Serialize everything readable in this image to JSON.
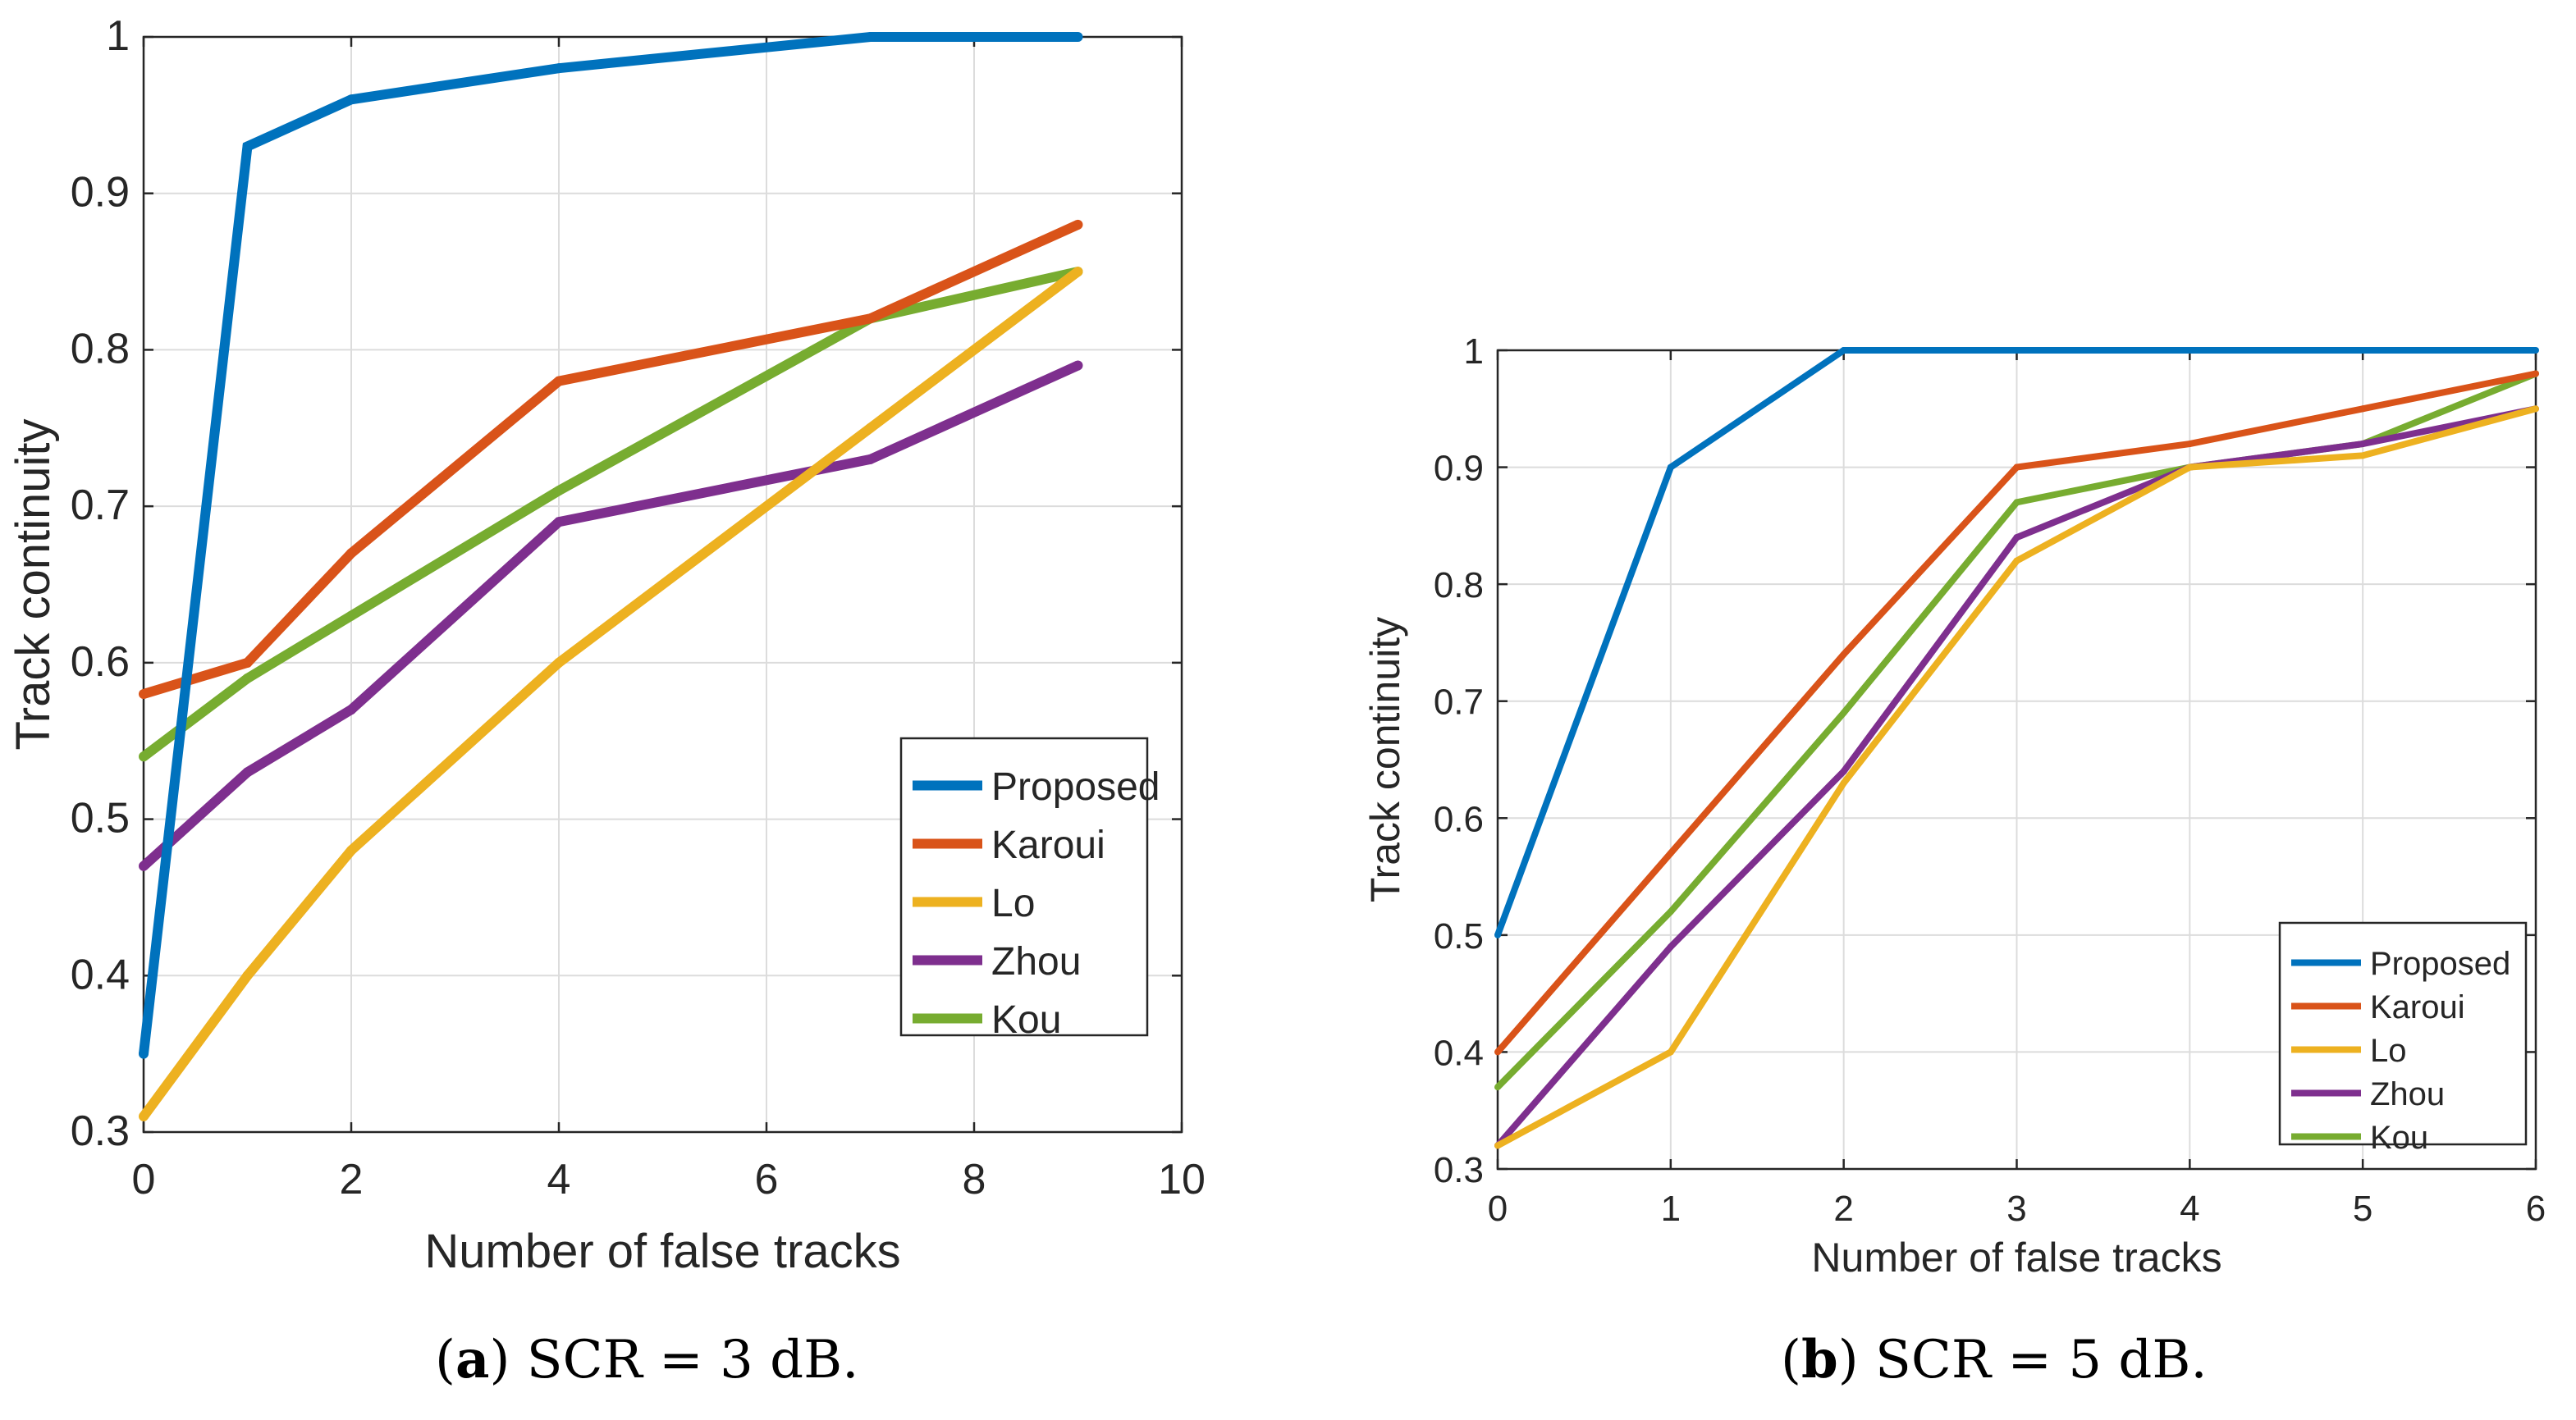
{
  "chart_data": [
    {
      "type": "line",
      "caption_letter": "a",
      "caption_text": "SCR = 3 dB.",
      "xlabel": "Number of false tracks",
      "ylabel": "Track continuity",
      "xlim": [
        0,
        10
      ],
      "ylim": [
        0.3,
        1
      ],
      "xticks": [
        0,
        2,
        4,
        6,
        8,
        10
      ],
      "yticks": [
        0.3,
        0.4,
        0.5,
        0.6,
        0.7,
        0.8,
        0.9,
        1
      ],
      "xtick_labels": [
        "0",
        "2",
        "4",
        "6",
        "8",
        "10"
      ],
      "ytick_labels": [
        "0.3",
        "0.4",
        "0.5",
        "0.6",
        "0.7",
        "0.8",
        "0.9",
        "1"
      ],
      "grid": true,
      "legend": "lower-right",
      "series": [
        {
          "name": "Proposed",
          "color": "#0072BD",
          "x": [
            0,
            1,
            2,
            4,
            7,
            9
          ],
          "values": [
            0.35,
            0.93,
            0.96,
            0.98,
            1.0,
            1.0
          ]
        },
        {
          "name": "Karoui",
          "color": "#D95319",
          "x": [
            0,
            1,
            2,
            4,
            7,
            9
          ],
          "values": [
            0.58,
            0.6,
            0.67,
            0.78,
            0.82,
            0.88
          ]
        },
        {
          "name": "Lo",
          "color": "#EDB120",
          "x": [
            0,
            1,
            2,
            4,
            7,
            9
          ],
          "values": [
            0.31,
            0.4,
            0.48,
            0.6,
            0.75,
            0.85
          ]
        },
        {
          "name": "Zhou",
          "color": "#7E2F8E",
          "x": [
            0,
            1,
            2,
            4,
            7,
            9
          ],
          "values": [
            0.47,
            0.53,
            0.57,
            0.69,
            0.73,
            0.79
          ]
        },
        {
          "name": "Kou",
          "color": "#77AC30",
          "x": [
            0,
            1,
            2,
            4,
            7,
            9
          ],
          "values": [
            0.54,
            0.59,
            0.63,
            0.71,
            0.82,
            0.85
          ]
        }
      ]
    },
    {
      "type": "line",
      "caption_letter": "b",
      "caption_text": "SCR = 5 dB.",
      "xlabel": "Number of false tracks",
      "ylabel": "Track continuity",
      "xlim": [
        0,
        6
      ],
      "ylim": [
        0.3,
        1
      ],
      "xticks": [
        0,
        1,
        2,
        3,
        4,
        5,
        6
      ],
      "yticks": [
        0.3,
        0.4,
        0.5,
        0.6,
        0.7,
        0.8,
        0.9,
        1
      ],
      "xtick_labels": [
        "0",
        "1",
        "2",
        "3",
        "4",
        "5",
        "6"
      ],
      "ytick_labels": [
        "0.3",
        "0.4",
        "0.5",
        "0.6",
        "0.7",
        "0.8",
        "0.9",
        "1"
      ],
      "grid": true,
      "legend": "lower-right",
      "series": [
        {
          "name": "Proposed",
          "color": "#0072BD",
          "x": [
            0,
            1,
            2,
            3,
            4,
            5,
            6
          ],
          "values": [
            0.5,
            0.9,
            1.0,
            1.0,
            1.0,
            1.0,
            1.0
          ]
        },
        {
          "name": "Karoui",
          "color": "#D95319",
          "x": [
            0,
            1,
            2,
            3,
            4,
            5,
            6
          ],
          "values": [
            0.4,
            0.57,
            0.74,
            0.9,
            0.92,
            0.95,
            0.98
          ]
        },
        {
          "name": "Lo",
          "color": "#EDB120",
          "x": [
            0,
            1,
            2,
            3,
            4,
            5,
            6
          ],
          "values": [
            0.32,
            0.4,
            0.63,
            0.82,
            0.9,
            0.91,
            0.95
          ]
        },
        {
          "name": "Zhou",
          "color": "#7E2F8E",
          "x": [
            0,
            1,
            2,
            3,
            4,
            5,
            6
          ],
          "values": [
            0.32,
            0.49,
            0.64,
            0.84,
            0.9,
            0.92,
            0.95
          ]
        },
        {
          "name": "Kou",
          "color": "#77AC30",
          "x": [
            0,
            1,
            2,
            3,
            4,
            5,
            6
          ],
          "values": [
            0.37,
            0.52,
            0.69,
            0.87,
            0.9,
            0.92,
            0.98
          ]
        }
      ]
    }
  ]
}
